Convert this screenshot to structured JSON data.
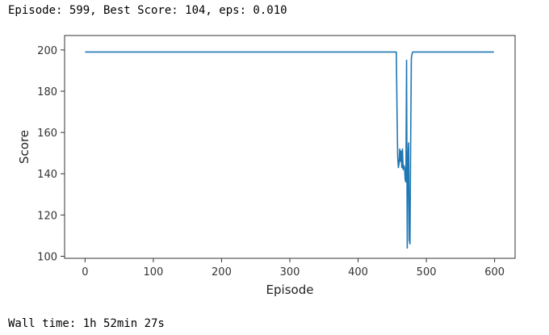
{
  "output": {
    "status_line": "Episode: 599, Best Score: 104, eps: 0.010",
    "wall_time": "Wall time: 1h 52min 27s"
  },
  "chart_data": {
    "type": "line",
    "title": "",
    "xlabel": "Episode",
    "ylabel": "Score",
    "xlim": [
      -30,
      630
    ],
    "ylim": [
      99,
      207
    ],
    "xticks": [
      0,
      100,
      200,
      300,
      400,
      500,
      600
    ],
    "yticks": [
      100,
      120,
      140,
      160,
      180,
      200
    ],
    "grid": false,
    "colors": {
      "line": "#1f77b4",
      "axes": "#333333"
    },
    "series": [
      {
        "x": [
          0,
          456,
          457,
          458,
          459,
          460,
          461,
          462,
          463,
          464,
          465,
          466,
          467,
          468,
          469,
          470,
          471,
          472,
          473,
          474,
          475,
          476,
          477,
          478,
          479,
          480,
          481,
          482,
          599
        ],
        "y": [
          199,
          199,
          171,
          148,
          143,
          145,
          152,
          146,
          151,
          143,
          152,
          142,
          144,
          143,
          137,
          136,
          195,
          104,
          147,
          155,
          108,
          106,
          155,
          196,
          198,
          199,
          199,
          199,
          199
        ]
      }
    ]
  }
}
